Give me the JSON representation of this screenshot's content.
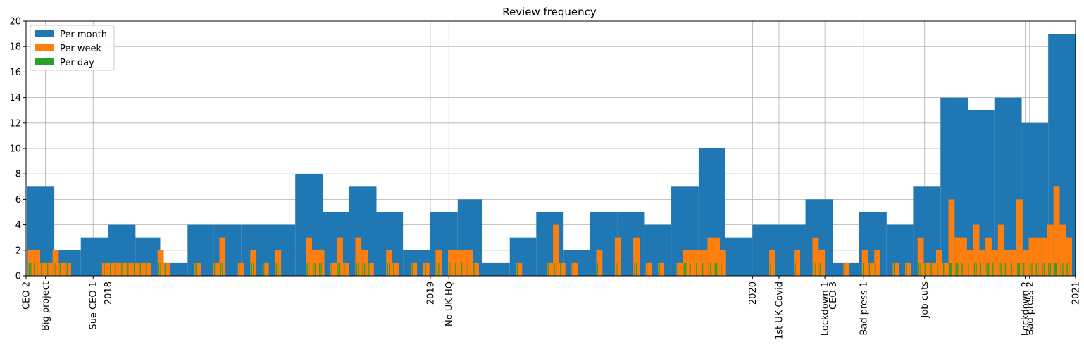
{
  "chart_data": {
    "type": "bar",
    "title": "Review frequency",
    "xlabel": "",
    "ylabel": "",
    "ylim": [
      0,
      20
    ],
    "yticks": [
      0,
      2,
      4,
      6,
      8,
      10,
      12,
      14,
      16,
      18,
      20
    ],
    "xlim": [
      "2017-09-30",
      "2021-01-01"
    ],
    "grid": true,
    "legend_position": "top-left",
    "colors": {
      "Per month": "#1f77b4",
      "Per week": "#ff7f0e",
      "Per day": "#2ca02c"
    },
    "x_ticks": [
      {
        "date": "2017-09-30",
        "label": "CEO 2"
      },
      {
        "date": "2017-10-22",
        "label": "Big project"
      },
      {
        "date": "2017-12-15",
        "label": "Sue CEO 1"
      },
      {
        "date": "2018-01-01",
        "label": "2018"
      },
      {
        "date": "2019-01-01",
        "label": "2019"
      },
      {
        "date": "2019-01-22",
        "label": "No UK HQ"
      },
      {
        "date": "2020-01-01",
        "label": "2020"
      },
      {
        "date": "2020-01-31",
        "label": "1st UK Covid"
      },
      {
        "date": "2020-03-23",
        "label": "Lockdown 1"
      },
      {
        "date": "2020-04-01",
        "label": "CEO 3"
      },
      {
        "date": "2020-05-06",
        "label": "Bad press 1"
      },
      {
        "date": "2020-07-14",
        "label": "Job cuts"
      },
      {
        "date": "2020-11-05",
        "label": "Lockdown 2"
      },
      {
        "date": "2020-11-10",
        "label": "Bad press 2"
      },
      {
        "date": "2021-01-01",
        "label": "2021"
      }
    ],
    "series": [
      {
        "name": "Per month",
        "bins": [
          {
            "x": "2017-10",
            "y": 7
          },
          {
            "x": "2017-11",
            "y": 2
          },
          {
            "x": "2017-12",
            "y": 3
          },
          {
            "x": "2018-01",
            "y": 4
          },
          {
            "x": "2018-02",
            "y": 3
          },
          {
            "x": "2018-03",
            "y": 1
          },
          {
            "x": "2018-04",
            "y": 4
          },
          {
            "x": "2018-05",
            "y": 4
          },
          {
            "x": "2018-06",
            "y": 4
          },
          {
            "x": "2018-07",
            "y": 4
          },
          {
            "x": "2018-08",
            "y": 8
          },
          {
            "x": "2018-09",
            "y": 5
          },
          {
            "x": "2018-10",
            "y": 7
          },
          {
            "x": "2018-11",
            "y": 5
          },
          {
            "x": "2018-12",
            "y": 2
          },
          {
            "x": "2019-01",
            "y": 5
          },
          {
            "x": "2019-02",
            "y": 6
          },
          {
            "x": "2019-03",
            "y": 1
          },
          {
            "x": "2019-04",
            "y": 3
          },
          {
            "x": "2019-05",
            "y": 5
          },
          {
            "x": "2019-06",
            "y": 2
          },
          {
            "x": "2019-07",
            "y": 5
          },
          {
            "x": "2019-08",
            "y": 5
          },
          {
            "x": "2019-09",
            "y": 4
          },
          {
            "x": "2019-10",
            "y": 7
          },
          {
            "x": "2019-11",
            "y": 10
          },
          {
            "x": "2019-12",
            "y": 3
          },
          {
            "x": "2020-01",
            "y": 4
          },
          {
            "x": "2020-02",
            "y": 4
          },
          {
            "x": "2020-03",
            "y": 6
          },
          {
            "x": "2020-04",
            "y": 1
          },
          {
            "x": "2020-05",
            "y": 5
          },
          {
            "x": "2020-06",
            "y": 4
          },
          {
            "x": "2020-07",
            "y": 7
          },
          {
            "x": "2020-08",
            "y": 14
          },
          {
            "x": "2020-09",
            "y": 13
          },
          {
            "x": "2020-10",
            "y": 14
          },
          {
            "x": "2020-11",
            "y": 12
          },
          {
            "x": "2020-12",
            "y": 19
          }
        ]
      },
      {
        "name": "Per week",
        "bins": [
          {
            "x": "2017-10-02",
            "y": 2
          },
          {
            "x": "2017-10-09",
            "y": 2
          },
          {
            "x": "2017-10-16",
            "y": 1
          },
          {
            "x": "2017-10-23",
            "y": 1
          },
          {
            "x": "2017-10-30",
            "y": 2
          },
          {
            "x": "2017-11-06",
            "y": 1
          },
          {
            "x": "2017-11-13",
            "y": 1
          },
          {
            "x": "2017-12-25",
            "y": 1
          },
          {
            "x": "2018-01-01",
            "y": 1
          },
          {
            "x": "2018-01-08",
            "y": 1
          },
          {
            "x": "2018-01-15",
            "y": 1
          },
          {
            "x": "2018-01-22",
            "y": 1
          },
          {
            "x": "2018-01-29",
            "y": 1
          },
          {
            "x": "2018-02-05",
            "y": 1
          },
          {
            "x": "2018-02-12",
            "y": 1
          },
          {
            "x": "2018-02-26",
            "y": 2
          },
          {
            "x": "2018-03-05",
            "y": 1
          },
          {
            "x": "2018-04-09",
            "y": 1
          },
          {
            "x": "2018-04-30",
            "y": 1
          },
          {
            "x": "2018-05-07",
            "y": 3
          },
          {
            "x": "2018-05-28",
            "y": 1
          },
          {
            "x": "2018-06-11",
            "y": 2
          },
          {
            "x": "2018-06-25",
            "y": 1
          },
          {
            "x": "2018-07-09",
            "y": 2
          },
          {
            "x": "2018-08-13",
            "y": 3
          },
          {
            "x": "2018-08-20",
            "y": 2
          },
          {
            "x": "2018-08-27",
            "y": 2
          },
          {
            "x": "2018-09-10",
            "y": 1
          },
          {
            "x": "2018-09-17",
            "y": 3
          },
          {
            "x": "2018-09-24",
            "y": 1
          },
          {
            "x": "2018-10-08",
            "y": 3
          },
          {
            "x": "2018-10-15",
            "y": 2
          },
          {
            "x": "2018-10-22",
            "y": 1
          },
          {
            "x": "2018-11-12",
            "y": 2
          },
          {
            "x": "2018-11-19",
            "y": 1
          },
          {
            "x": "2018-12-10",
            "y": 1
          },
          {
            "x": "2018-12-24",
            "y": 1
          },
          {
            "x": "2019-01-07",
            "y": 2
          },
          {
            "x": "2019-01-21",
            "y": 2
          },
          {
            "x": "2019-01-28",
            "y": 2
          },
          {
            "x": "2019-02-04",
            "y": 2
          },
          {
            "x": "2019-02-11",
            "y": 2
          },
          {
            "x": "2019-02-18",
            "y": 1
          },
          {
            "x": "2019-04-08",
            "y": 1
          },
          {
            "x": "2019-05-13",
            "y": 1
          },
          {
            "x": "2019-05-20",
            "y": 4
          },
          {
            "x": "2019-05-27",
            "y": 1
          },
          {
            "x": "2019-06-10",
            "y": 1
          },
          {
            "x": "2019-07-08",
            "y": 2
          },
          {
            "x": "2019-07-29",
            "y": 3
          },
          {
            "x": "2019-08-19",
            "y": 3
          },
          {
            "x": "2019-09-02",
            "y": 1
          },
          {
            "x": "2019-09-16",
            "y": 1
          },
          {
            "x": "2019-10-07",
            "y": 1
          },
          {
            "x": "2019-10-14",
            "y": 2
          },
          {
            "x": "2019-10-21",
            "y": 2
          },
          {
            "x": "2019-10-28",
            "y": 2
          },
          {
            "x": "2019-11-04",
            "y": 2
          },
          {
            "x": "2019-11-11",
            "y": 3
          },
          {
            "x": "2019-11-18",
            "y": 3
          },
          {
            "x": "2019-11-25",
            "y": 2
          },
          {
            "x": "2020-01-20",
            "y": 2
          },
          {
            "x": "2020-02-17",
            "y": 2
          },
          {
            "x": "2020-03-09",
            "y": 3
          },
          {
            "x": "2020-03-16",
            "y": 2
          },
          {
            "x": "2020-04-13",
            "y": 1
          },
          {
            "x": "2020-05-04",
            "y": 2
          },
          {
            "x": "2020-05-11",
            "y": 1
          },
          {
            "x": "2020-05-18",
            "y": 2
          },
          {
            "x": "2020-06-08",
            "y": 1
          },
          {
            "x": "2020-06-22",
            "y": 1
          },
          {
            "x": "2020-07-06",
            "y": 3
          },
          {
            "x": "2020-07-13",
            "y": 1
          },
          {
            "x": "2020-07-20",
            "y": 1
          },
          {
            "x": "2020-07-27",
            "y": 2
          },
          {
            "x": "2020-08-03",
            "y": 1
          },
          {
            "x": "2020-08-10",
            "y": 6
          },
          {
            "x": "2020-08-17",
            "y": 3
          },
          {
            "x": "2020-08-24",
            "y": 3
          },
          {
            "x": "2020-08-31",
            "y": 2
          },
          {
            "x": "2020-09-07",
            "y": 4
          },
          {
            "x": "2020-09-14",
            "y": 2
          },
          {
            "x": "2020-09-21",
            "y": 3
          },
          {
            "x": "2020-09-28",
            "y": 2
          },
          {
            "x": "2020-10-05",
            "y": 4
          },
          {
            "x": "2020-10-12",
            "y": 2
          },
          {
            "x": "2020-10-19",
            "y": 2
          },
          {
            "x": "2020-10-26",
            "y": 6
          },
          {
            "x": "2020-11-02",
            "y": 2
          },
          {
            "x": "2020-11-09",
            "y": 3
          },
          {
            "x": "2020-11-16",
            "y": 3
          },
          {
            "x": "2020-11-23",
            "y": 3
          },
          {
            "x": "2020-11-30",
            "y": 4
          },
          {
            "x": "2020-12-07",
            "y": 7
          },
          {
            "x": "2020-12-14",
            "y": 4
          },
          {
            "x": "2020-12-21",
            "y": 3
          }
        ]
      },
      {
        "name": "Per day",
        "dates": [
          "2017-10-03",
          "2017-10-05",
          "2017-10-09",
          "2017-10-12",
          "2017-10-17",
          "2017-10-24",
          "2017-10-31",
          "2017-11-02",
          "2017-11-07",
          "2017-11-15",
          "2017-12-27",
          "2018-01-03",
          "2018-01-09",
          "2018-01-16",
          "2018-01-23",
          "2018-01-30",
          "2018-02-06",
          "2018-02-13",
          "2018-02-27",
          "2018-03-01",
          "2018-03-06",
          "2018-04-10",
          "2018-05-01",
          "2018-05-08",
          "2018-05-10",
          "2018-05-29",
          "2018-06-12",
          "2018-06-14",
          "2018-06-26",
          "2018-07-10",
          "2018-07-12",
          "2018-08-14",
          "2018-08-16",
          "2018-08-21",
          "2018-08-23",
          "2018-08-28",
          "2018-08-30",
          "2018-09-11",
          "2018-09-18",
          "2018-09-20",
          "2018-09-25",
          "2018-10-09",
          "2018-10-11",
          "2018-10-16",
          "2018-10-18",
          "2018-10-23",
          "2018-11-13",
          "2018-11-15",
          "2018-11-20",
          "2018-12-11",
          "2018-12-26",
          "2019-01-08",
          "2019-01-10",
          "2019-01-22",
          "2019-01-24",
          "2019-01-29",
          "2019-02-05",
          "2019-02-12",
          "2019-02-19",
          "2019-04-09",
          "2019-05-14",
          "2019-05-21",
          "2019-05-23",
          "2019-05-28",
          "2019-06-11",
          "2019-07-09",
          "2019-07-30",
          "2019-08-01",
          "2019-08-20",
          "2019-08-22",
          "2019-09-03",
          "2019-09-17",
          "2019-10-08",
          "2019-10-15",
          "2019-10-17",
          "2019-10-22",
          "2019-10-29",
          "2019-11-05",
          "2019-11-12",
          "2019-11-14",
          "2019-11-19",
          "2019-11-21",
          "2019-11-26",
          "2020-01-21",
          "2020-02-18",
          "2020-03-10",
          "2020-03-12",
          "2020-03-17",
          "2020-04-14",
          "2020-05-05",
          "2020-05-12",
          "2020-05-19",
          "2020-06-09",
          "2020-06-23",
          "2020-07-07",
          "2020-07-09",
          "2020-07-14",
          "2020-07-21",
          "2020-07-28",
          "2020-08-04",
          "2020-08-11",
          "2020-08-12",
          "2020-08-13",
          "2020-08-18",
          "2020-08-20",
          "2020-08-25",
          "2020-08-27",
          "2020-09-01",
          "2020-09-08",
          "2020-09-10",
          "2020-09-15",
          "2020-09-22",
          "2020-09-24",
          "2020-09-29",
          "2020-10-06",
          "2020-10-08",
          "2020-10-13",
          "2020-10-20",
          "2020-10-27",
          "2020-10-28",
          "2020-10-29",
          "2020-11-03",
          "2020-11-10",
          "2020-11-12",
          "2020-11-17",
          "2020-11-19",
          "2020-11-24",
          "2020-11-26",
          "2020-12-01",
          "2020-12-03",
          "2020-12-08",
          "2020-12-09",
          "2020-12-10",
          "2020-12-15",
          "2020-12-17",
          "2020-12-22",
          "2020-12-24"
        ],
        "value": 1
      }
    ]
  }
}
